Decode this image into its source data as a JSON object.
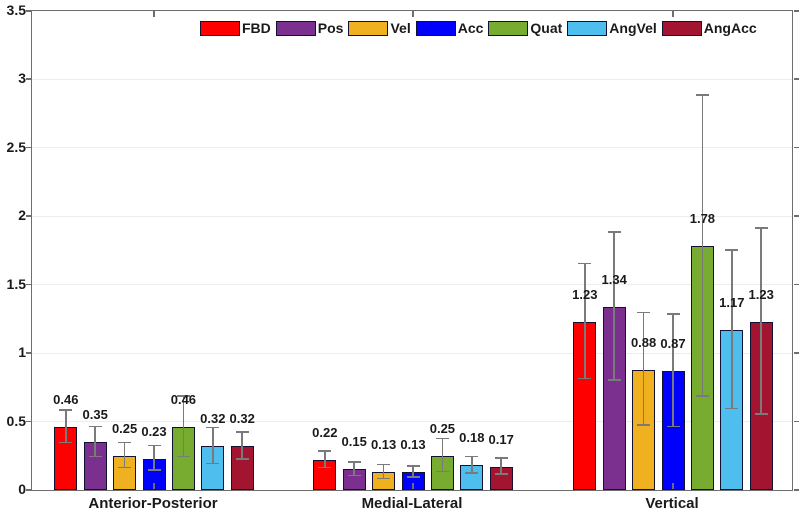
{
  "chart_data": {
    "type": "bar",
    "title": "",
    "xlabel": "",
    "ylabel": "",
    "categories": [
      "Anterior-Posterior",
      "Medial-Lateral",
      "Vertical"
    ],
    "series": [
      {
        "name": "FBD",
        "color": "#fe0000",
        "values": [
          0.46,
          0.22,
          1.23
        ],
        "errors": [
          0.12,
          0.06,
          0.42
        ]
      },
      {
        "name": "Pos",
        "color": "#7b2f8e",
        "values": [
          0.35,
          0.15,
          1.34
        ],
        "errors": [
          0.11,
          0.05,
          0.54
        ]
      },
      {
        "name": "Vel",
        "color": "#efb120",
        "values": [
          0.25,
          0.13,
          0.88
        ],
        "errors": [
          0.09,
          0.05,
          0.41
        ]
      },
      {
        "name": "Acc",
        "color": "#0000fe",
        "values": [
          0.23,
          0.13,
          0.87
        ],
        "errors": [
          0.09,
          0.04,
          0.41
        ]
      },
      {
        "name": "Quat",
        "color": "#77ac30",
        "values": [
          0.46,
          0.25,
          1.78
        ],
        "errors": [
          0.22,
          0.12,
          1.1
        ]
      },
      {
        "name": "AngVel",
        "color": "#4dbeee",
        "values": [
          0.32,
          0.18,
          1.17
        ],
        "errors": [
          0.13,
          0.06,
          0.58
        ]
      },
      {
        "name": "AngAcc",
        "color": "#a2142f",
        "values": [
          0.32,
          0.17,
          1.23
        ],
        "errors": [
          0.1,
          0.06,
          0.68
        ]
      }
    ],
    "ylim": [
      0,
      3.5
    ],
    "yticks": [
      0,
      0.5,
      1,
      1.5,
      2,
      2.5,
      3,
      3.5
    ],
    "ytick_labels": [
      "0",
      "0.5",
      "1",
      "1.5",
      "2",
      "2.5",
      "3",
      "3.5"
    ],
    "value_label_decimals": 2,
    "grid": "horizontal",
    "legend_position": "top-inside",
    "error_bars": "symmetric",
    "colors": {
      "bar_edge": "#111133",
      "error_bar": "#7a7a7a",
      "grid": "#ededed",
      "axis": "#6e6e6e",
      "text": "#1a1a1a"
    }
  }
}
